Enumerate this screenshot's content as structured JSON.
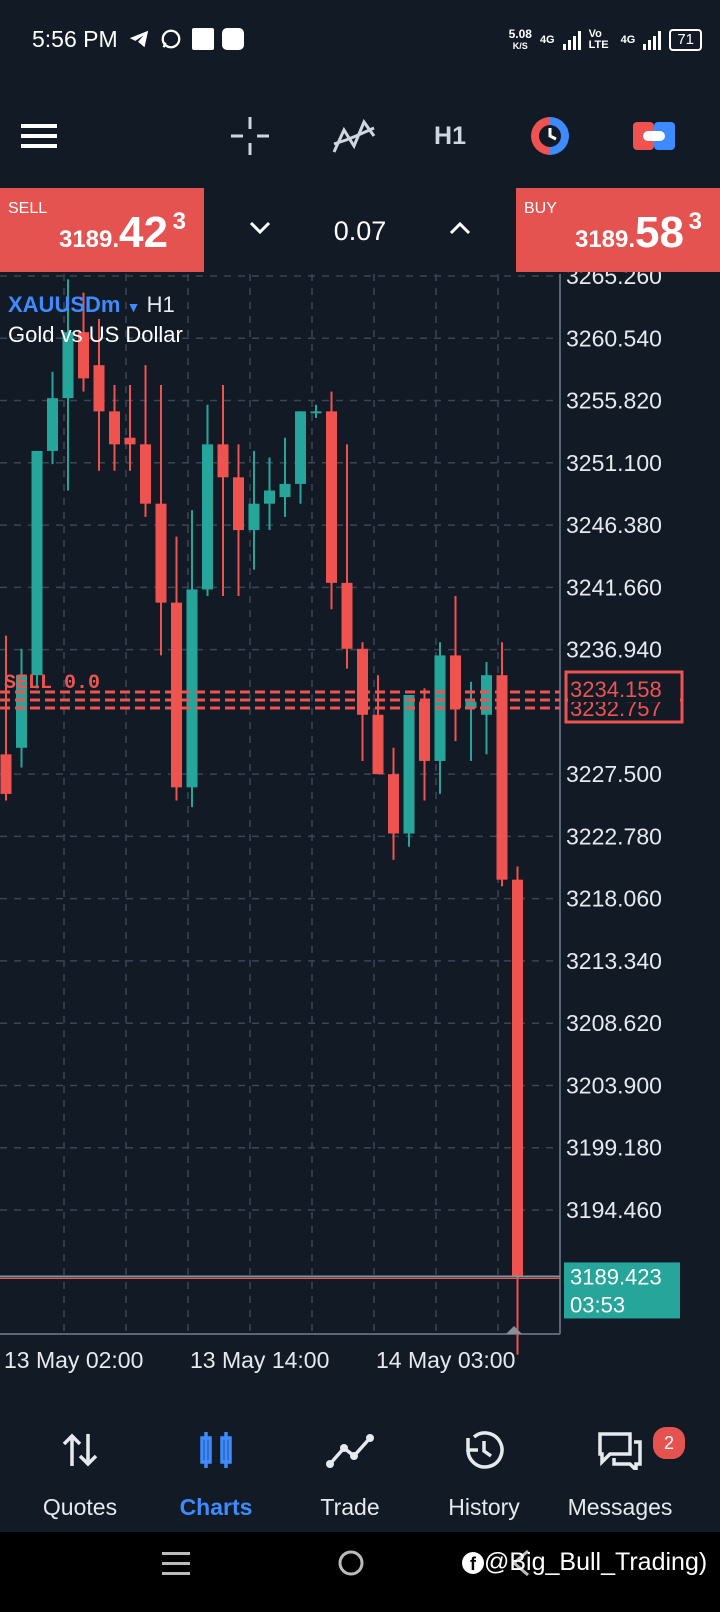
{
  "status_bar": {
    "time": "5:56 PM",
    "net_speed": "5.08",
    "net_unit": "K/S",
    "sim1": "4G",
    "volte": "Vo LTE",
    "sim2": "4G",
    "battery": "71"
  },
  "toolbar": {
    "icons": [
      "crosshair-icon",
      "indicators-icon",
      "timeframe",
      "color-theme-icon",
      "toggle-icon"
    ],
    "timeframe": "H1"
  },
  "trade": {
    "sell_label": "SELL",
    "sell_price_prefix": "3189.",
    "sell_price_big": "42",
    "sell_price_sup": "3",
    "buy_label": "BUY",
    "buy_price_prefix": "3189.",
    "buy_price_big": "58",
    "buy_price_sup": "3",
    "lot": "0.07"
  },
  "chart": {
    "symbol": "XAUUSDm",
    "timeframe": "H1",
    "description": "Gold vs US Dollar",
    "bid_line_price": "3189.423",
    "bid_line_countdown": "03:53",
    "order_line_price_1": "3234.158",
    "order_line_price_2": "3232.757",
    "order_line_label": "SELL 0.0",
    "colors": {
      "bull": "#26a69a",
      "bear": "#ef5350",
      "grid": "#3a4556",
      "background": "#121a26"
    }
  },
  "chart_data": {
    "type": "candlestick",
    "symbol": "XAUUSDm",
    "timeframe": "H1",
    "y_ticks": [
      "3265.260",
      "3260.540",
      "3255.820",
      "3251.100",
      "3246.380",
      "3241.660",
      "3236.940",
      "3227.500",
      "3222.780",
      "3218.060",
      "3213.340",
      "3208.620",
      "3203.900",
      "3199.180",
      "3194.460"
    ],
    "ylim": [
      3183.5,
      3265.3
    ],
    "x_ticks": [
      "13 May 02:00",
      "13 May 14:00",
      "14 May 03:00"
    ],
    "candles": [
      {
        "o": 3229.0,
        "h": 3238.0,
        "l": 3225.5,
        "c": 3226.0
      },
      {
        "o": 3229.5,
        "h": 3237.0,
        "l": 3228.0,
        "c": 3235.0
      },
      {
        "o": 3235.0,
        "h": 3252.0,
        "l": 3234.0,
        "c": 3252.0
      },
      {
        "o": 3252.0,
        "h": 3258.0,
        "l": 3251.0,
        "c": 3256.0
      },
      {
        "o": 3256.0,
        "h": 3265.0,
        "l": 3249.0,
        "c": 3261.0
      },
      {
        "o": 3261.0,
        "h": 3264.0,
        "l": 3256.5,
        "c": 3257.5
      },
      {
        "o": 3258.5,
        "h": 3262.0,
        "l": 3250.5,
        "c": 3255.0
      },
      {
        "o": 3255.0,
        "h": 3257.0,
        "l": 3250.5,
        "c": 3252.5
      },
      {
        "o": 3253.0,
        "h": 3257.0,
        "l": 3250.5,
        "c": 3252.5
      },
      {
        "o": 3252.5,
        "h": 3258.5,
        "l": 3247.0,
        "c": 3248.0
      },
      {
        "o": 3248.0,
        "h": 3257.0,
        "l": 3236.5,
        "c": 3240.5
      },
      {
        "o": 3240.5,
        "h": 3245.5,
        "l": 3225.5,
        "c": 3226.5
      },
      {
        "o": 3226.5,
        "h": 3247.5,
        "l": 3225.0,
        "c": 3241.5
      },
      {
        "o": 3241.5,
        "h": 3255.5,
        "l": 3241.0,
        "c": 3252.5
      },
      {
        "o": 3252.5,
        "h": 3257.0,
        "l": 3241.0,
        "c": 3250.0
      },
      {
        "o": 3250.0,
        "h": 3252.5,
        "l": 3241.0,
        "c": 3246.0
      },
      {
        "o": 3246.0,
        "h": 3252.0,
        "l": 3243.0,
        "c": 3248.0
      },
      {
        "o": 3248.0,
        "h": 3251.5,
        "l": 3246.0,
        "c": 3249.0
      },
      {
        "o": 3248.5,
        "h": 3253.0,
        "l": 3247.0,
        "c": 3249.5
      },
      {
        "o": 3249.5,
        "h": 3255.0,
        "l": 3248.0,
        "c": 3255.0
      },
      {
        "o": 3255.0,
        "h": 3255.5,
        "l": 3254.5,
        "c": 3255.0
      },
      {
        "o": 3255.0,
        "h": 3256.5,
        "l": 3240.0,
        "c": 3242.0
      },
      {
        "o": 3242.0,
        "h": 3252.5,
        "l": 3235.5,
        "c": 3237.0
      },
      {
        "o": 3237.0,
        "h": 3237.5,
        "l": 3228.5,
        "c": 3232.0
      },
      {
        "o": 3232.0,
        "h": 3235.0,
        "l": 3227.5,
        "c": 3227.5
      },
      {
        "o": 3227.5,
        "h": 3229.5,
        "l": 3221.0,
        "c": 3223.0
      },
      {
        "o": 3223.0,
        "h": 3233.5,
        "l": 3222.0,
        "c": 3233.5
      },
      {
        "o": 3233.0,
        "h": 3234.0,
        "l": 3225.5,
        "c": 3228.5
      },
      {
        "o": 3228.5,
        "h": 3237.5,
        "l": 3226.0,
        "c": 3236.5
      },
      {
        "o": 3236.5,
        "h": 3241.0,
        "l": 3230.0,
        "c": 3232.5
      },
      {
        "o": 3232.5,
        "h": 3234.5,
        "l": 3228.5,
        "c": 3233.0
      },
      {
        "o": 3232.0,
        "h": 3236.0,
        "l": 3229.0,
        "c": 3235.0
      },
      {
        "o": 3235.0,
        "h": 3237.5,
        "l": 3219.0,
        "c": 3219.5
      },
      {
        "o": 3219.5,
        "h": 3220.5,
        "l": 3183.5,
        "c": 3189.4
      }
    ]
  },
  "nav": {
    "items": [
      {
        "label": "Quotes",
        "icon": "quotes-icon"
      },
      {
        "label": "Charts",
        "icon": "charts-icon"
      },
      {
        "label": "Trade",
        "icon": "trade-icon"
      },
      {
        "label": "History",
        "icon": "history-icon"
      },
      {
        "label": "Messages",
        "icon": "messages-icon"
      }
    ],
    "active": "Charts",
    "messages_badge": "2"
  },
  "watermark": "@Big_Bull_Trading)"
}
